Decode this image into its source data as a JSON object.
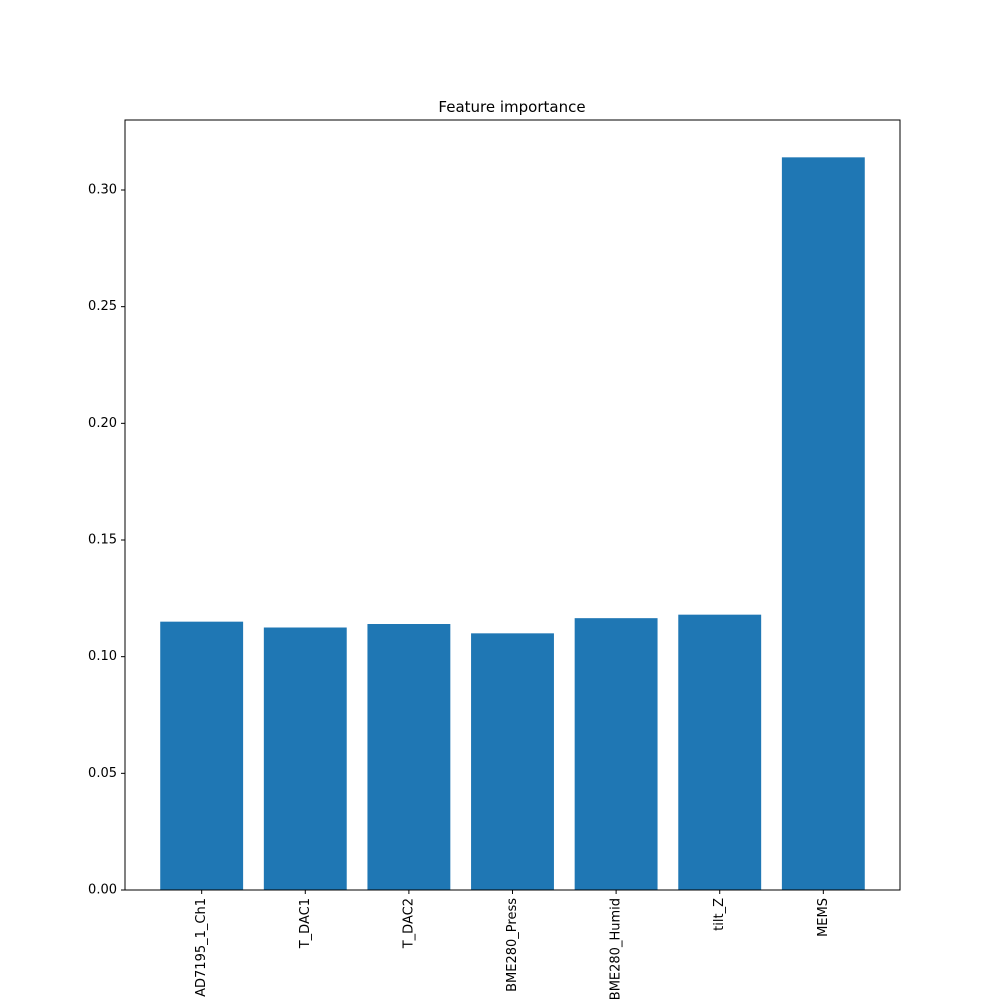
{
  "chart_data": {
    "type": "bar",
    "title": "Feature importance",
    "categories": [
      "AD7195_1_Ch1",
      "T_DAC1",
      "T_DAC2",
      "BME280_Press",
      "BME280_Humid",
      "tilt_Z",
      "MEMS"
    ],
    "values": [
      0.115,
      0.1125,
      0.114,
      0.11,
      0.1165,
      0.118,
      0.314
    ],
    "xlabel": "",
    "ylabel": "",
    "ylim": [
      0,
      0.33
    ],
    "yticks": [
      0.0,
      0.05,
      0.1,
      0.15,
      0.2,
      0.25,
      0.3
    ],
    "ytick_labels": [
      "0.00",
      "0.05",
      "0.10",
      "0.15",
      "0.20",
      "0.25",
      "0.30"
    ],
    "grid": false,
    "bar_color": "#1f77b4",
    "xtick_rotation": -90
  }
}
